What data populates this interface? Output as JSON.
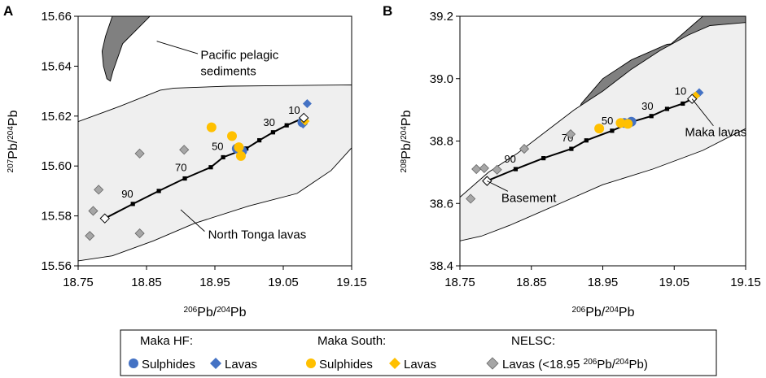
{
  "chart_data": [
    {
      "panel_label": "A",
      "type": "scatter",
      "xlim": [
        18.75,
        19.15
      ],
      "ylim": [
        15.56,
        15.66
      ],
      "xticks": [
        "18.75",
        "18.85",
        "18.95",
        "19.05",
        "19.15"
      ],
      "yticks": [
        "15.56",
        "15.58",
        "15.60",
        "15.62",
        "15.64",
        "15.66"
      ],
      "x_tick_values": [
        18.75,
        18.85,
        18.95,
        19.05,
        19.15
      ],
      "y_tick_values": [
        15.56,
        15.58,
        15.6,
        15.62,
        15.64,
        15.66
      ],
      "xlabel": {
        "sup": "206",
        "mid": "Pb/",
        "sup2": "204",
        "end": "Pb"
      },
      "ylabel": {
        "sup": "207",
        "mid": "Pb/",
        "sup2": "204",
        "end": "Pb"
      },
      "regions": [
        {
          "name": "pacific-pelagic-sediments",
          "label_lines": [
            "Pacific pelagic",
            "sediments"
          ],
          "fill": "#808080",
          "points": [
            [
              18.8,
              15.66
            ],
            [
              18.79,
              15.652
            ],
            [
              18.785,
              15.646
            ],
            [
              18.787,
              15.64
            ],
            [
              18.792,
              15.635
            ],
            [
              18.797,
              15.634
            ],
            [
              18.801,
              15.638
            ],
            [
              18.815,
              15.649
            ],
            [
              18.855,
              15.66
            ]
          ],
          "leader": {
            "from": [
              18.865,
              15.65
            ],
            "to": [
              18.925,
              15.645
            ]
          },
          "label_anchor": [
            18.929,
            15.6445
          ]
        },
        {
          "name": "north-tonga-lavas",
          "label_lines": [
            "North Tonga lavas"
          ],
          "fill": "#efefef",
          "points": [
            [
              18.75,
              15.6178
            ],
            [
              18.81,
              15.6238
            ],
            [
              18.87,
              15.6304
            ],
            [
              18.89,
              15.6312
            ],
            [
              18.97,
              15.632
            ],
            [
              19.05,
              15.6322
            ],
            [
              19.15,
              15.6325
            ],
            [
              19.15,
              15.6073
            ],
            [
              19.12,
              15.5982
            ],
            [
              19.07,
              15.589
            ],
            [
              19.0,
              15.584
            ],
            [
              18.92,
              15.577
            ],
            [
              18.86,
              15.57
            ],
            [
              18.8,
              15.564
            ],
            [
              18.75,
              15.562
            ]
          ],
          "leader": {
            "from": [
              18.9,
              15.5825
            ],
            "to": [
              18.935,
              15.5738
            ]
          },
          "label_anchor": [
            18.94,
            15.5725
          ]
        }
      ],
      "mixing_line": {
        "points": [
          [
            18.789,
            15.579
          ],
          [
            18.83,
            15.5848
          ],
          [
            18.868,
            15.59
          ],
          [
            18.906,
            15.595
          ],
          [
            18.944,
            15.5995
          ],
          [
            18.962,
            15.6035
          ],
          [
            18.996,
            15.607
          ],
          [
            19.015,
            15.6103
          ],
          [
            19.035,
            15.6135
          ],
          [
            19.055,
            15.6163
          ],
          [
            19.08,
            15.6193
          ]
        ],
        "endpoints": [
          [
            18.789,
            15.579
          ],
          [
            19.08,
            15.6193
          ]
        ],
        "labels": [
          {
            "text": "90",
            "at": [
              18.83,
              15.5848
            ],
            "dx": -14,
            "dy": -8
          },
          {
            "text": "70",
            "at": [
              18.906,
              15.595
            ],
            "dx": -12,
            "dy": -9
          },
          {
            "text": "50",
            "at": [
              18.962,
              15.6035
            ],
            "dx": -14,
            "dy": -9
          },
          {
            "text": "30",
            "at": [
              19.035,
              15.6135
            ],
            "dx": -12,
            "dy": -8
          },
          {
            "text": "10",
            "at": [
              19.055,
              15.6163
            ],
            "dx": 2,
            "dy": -14
          }
        ]
      },
      "series": [
        {
          "name": "Maka HF Sulphides",
          "marker": "circle",
          "color": "#4472c4",
          "points": [
            [
              18.982,
              15.607
            ],
            [
              18.99,
              15.606
            ],
            [
              19.078,
              15.6175
            ],
            [
              19.079,
              15.6178
            ]
          ]
        },
        {
          "name": "Maka HF Lavas",
          "marker": "diamond",
          "color": "#4472c4",
          "points": [
            [
              19.085,
              15.625
            ],
            [
              19.079,
              15.6168
            ]
          ]
        },
        {
          "name": "Maka South Sulphides",
          "marker": "circle",
          "color": "#ffc000",
          "points": [
            [
              18.945,
              15.6155
            ],
            [
              18.975,
              15.612
            ],
            [
              18.985,
              15.6075
            ],
            [
              18.988,
              15.604
            ]
          ]
        },
        {
          "name": "Maka South Lavas",
          "marker": "diamond",
          "color": "#ffc000",
          "points": [
            [
              19.082,
              15.618
            ]
          ]
        },
        {
          "name": "NELSC Lavas",
          "marker": "diamond",
          "color": "#a6a6a6",
          "points": [
            [
              18.767,
              15.572
            ],
            [
              18.772,
              15.582
            ],
            [
              18.78,
              15.5905
            ],
            [
              18.84,
              15.605
            ],
            [
              18.84,
              15.573
            ],
            [
              18.905,
              15.6065
            ]
          ]
        }
      ]
    },
    {
      "panel_label": "B",
      "type": "scatter",
      "xlim": [
        18.75,
        19.15
      ],
      "ylim": [
        38.4,
        39.2
      ],
      "xticks": [
        "18.75",
        "18.85",
        "18.95",
        "19.05",
        "19.15"
      ],
      "yticks": [
        "38.4",
        "38.6",
        "38.8",
        "39.0",
        "39.2"
      ],
      "x_tick_values": [
        18.75,
        18.85,
        18.95,
        19.05,
        19.15
      ],
      "y_tick_values": [
        38.4,
        38.6,
        38.8,
        39.0,
        39.2
      ],
      "xlabel": {
        "sup": "206",
        "mid": "Pb/",
        "sup2": "204",
        "end": "Pb"
      },
      "ylabel": {
        "sup": "208",
        "mid": "Pb/",
        "sup2": "204",
        "end": "Pb"
      },
      "regions": [
        {
          "name": "pacific-pelagic-sediments",
          "label_lines": [],
          "fill": "#808080",
          "points": [
            [
              18.9,
              38.82
            ],
            [
              18.96,
              38.94
            ],
            [
              19.0,
              39.02
            ],
            [
              19.04,
              39.1
            ],
            [
              19.07,
              39.16
            ],
            [
              19.09,
              39.2
            ],
            [
              19.15,
              39.2
            ],
            [
              19.15,
              39.14
            ],
            [
              19.09,
              39.12
            ],
            [
              19.04,
              39.11
            ],
            [
              18.99,
              39.06
            ],
            [
              18.95,
              39.0
            ],
            [
              18.92,
              38.92
            ]
          ],
          "leader": null,
          "label_anchor": null
        },
        {
          "name": "north-tonga-lavas",
          "label_lines": [],
          "fill": "#efefef",
          "points": [
            [
              18.75,
              38.62
            ],
            [
              18.79,
              38.7
            ],
            [
              18.83,
              38.76
            ],
            [
              18.87,
              38.83
            ],
            [
              18.91,
              38.9
            ],
            [
              18.95,
              38.96
            ],
            [
              18.99,
              39.03
            ],
            [
              19.03,
              39.09
            ],
            [
              19.07,
              39.14
            ],
            [
              19.1,
              39.17
            ],
            [
              19.15,
              39.18
            ],
            [
              19.15,
              38.84
            ],
            [
              19.09,
              38.77
            ],
            [
              19.02,
              38.71
            ],
            [
              18.95,
              38.66
            ],
            [
              18.88,
              38.59
            ],
            [
              18.82,
              38.53
            ],
            [
              18.78,
              38.495
            ],
            [
              18.75,
              38.48
            ]
          ],
          "leader": null,
          "label_anchor": null
        }
      ],
      "mixing_line": {
        "points": [
          [
            18.788,
            38.672
          ],
          [
            18.828,
            38.71
          ],
          [
            18.867,
            38.745
          ],
          [
            18.906,
            38.775
          ],
          [
            18.927,
            38.802
          ],
          [
            18.963,
            38.833
          ],
          [
            18.993,
            38.863
          ],
          [
            19.018,
            38.88
          ],
          [
            19.04,
            38.903
          ],
          [
            19.062,
            38.92
          ],
          [
            19.075,
            38.935
          ]
        ],
        "endpoints": [
          [
            18.788,
            38.672
          ],
          [
            19.075,
            38.935
          ]
        ],
        "labels": [
          {
            "text": "90",
            "at": [
              18.828,
              38.71
            ],
            "dx": -14,
            "dy": -8
          },
          {
            "text": "70",
            "at": [
              18.906,
              38.775
            ],
            "dx": -12,
            "dy": -9
          },
          {
            "text": "50",
            "at": [
              18.963,
              38.833
            ],
            "dx": -13,
            "dy": -8
          },
          {
            "text": "30",
            "at": [
              19.018,
              38.88
            ],
            "dx": -12,
            "dy": -8
          },
          {
            "text": "10",
            "at": [
              19.062,
              38.92
            ],
            "dx": -10,
            "dy": -11
          }
        ]
      },
      "annotations": [
        {
          "text": "Maka lavas",
          "point": [
            19.075,
            38.935
          ],
          "label_at": [
            19.065,
            38.815
          ]
        },
        {
          "text": "Basement",
          "point": [
            18.788,
            38.672
          ],
          "label_at": [
            18.808,
            38.605
          ]
        }
      ],
      "series": [
        {
          "name": "Maka HF Sulphides",
          "marker": "circle",
          "color": "#4472c4",
          "points": [
            [
              18.98,
              38.858
            ],
            [
              18.99,
              38.862
            ]
          ]
        },
        {
          "name": "Maka HF Lavas",
          "marker": "diamond",
          "color": "#4472c4",
          "points": [
            [
              19.085,
              38.955
            ],
            [
              19.078,
              38.942
            ]
          ]
        },
        {
          "name": "Maka South Sulphides",
          "marker": "circle",
          "color": "#ffc000",
          "points": [
            [
              18.945,
              38.84
            ],
            [
              18.975,
              38.858
            ],
            [
              18.985,
              38.855
            ]
          ]
        },
        {
          "name": "Maka South Lavas",
          "marker": "diamond",
          "color": "#ffc000",
          "points": [
            [
              19.08,
              38.945
            ]
          ]
        },
        {
          "name": "NELSC Lavas",
          "marker": "diamond",
          "color": "#a6a6a6",
          "points": [
            [
              18.765,
              38.615
            ],
            [
              18.773,
              38.71
            ],
            [
              18.784,
              38.713
            ],
            [
              18.802,
              38.708
            ],
            [
              18.84,
              38.775
            ],
            [
              18.905,
              38.822
            ]
          ]
        }
      ]
    }
  ],
  "legend": {
    "groups": [
      {
        "title": "Maka HF:",
        "items": [
          {
            "label": "Sulphides",
            "marker": "circle",
            "color": "#4472c4"
          },
          {
            "label": "Lavas",
            "marker": "diamond",
            "color": "#4472c4"
          }
        ]
      },
      {
        "title": "Maka South:",
        "items": [
          {
            "label": "Sulphides",
            "marker": "circle",
            "color": "#ffc000"
          },
          {
            "label": "Lavas",
            "marker": "diamond",
            "color": "#ffc000"
          }
        ]
      },
      {
        "title": "NELSC:",
        "items": [
          {
            "label": "Lavas (<18.95 ",
            "sup": "206",
            "mid": "Pb/",
            "sup2": "204",
            "end": "Pb)",
            "marker": "diamond",
            "color": "#a6a6a6"
          }
        ]
      }
    ]
  },
  "colors": {
    "blue": "#4472c4",
    "yellow": "#ffc000",
    "grey_marker": "#a6a6a6",
    "dark_region": "#808080",
    "light_region": "#efefef"
  }
}
